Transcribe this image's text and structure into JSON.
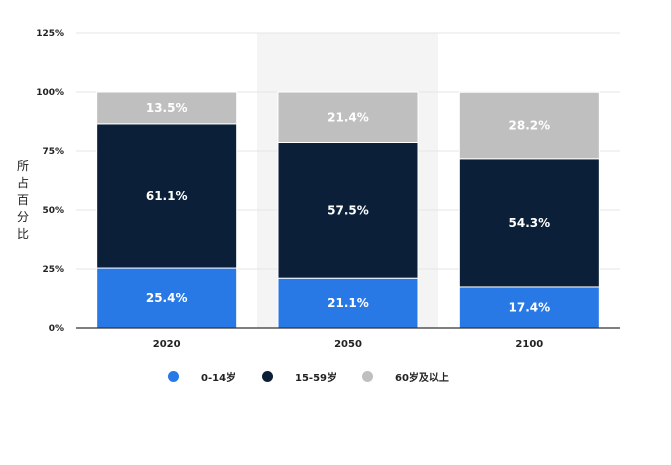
{
  "chart_data": {
    "type": "bar",
    "stacked": true,
    "ylabel": "所占百分比",
    "ylim": [
      0,
      125
    ],
    "yticks": [
      "0%",
      "25%",
      "50%",
      "75%",
      "100%",
      "125%"
    ],
    "ytick_values": [
      0,
      25,
      50,
      75,
      100,
      125
    ],
    "grid": true,
    "legend_position": "bottom",
    "categories": [
      "2020",
      "2050",
      "2100"
    ],
    "series": [
      {
        "name": "0-14岁",
        "color": "#2878e6",
        "values": [
          25.4,
          21.1,
          17.4
        ],
        "labels": [
          "25.4%",
          "21.1%",
          "17.4%"
        ]
      },
      {
        "name": "15-59岁",
        "color": "#0b2038",
        "values": [
          61.1,
          57.5,
          54.3
        ],
        "labels": [
          "61.1%",
          "57.5%",
          "54.3%"
        ]
      },
      {
        "name": "60岁及以上",
        "color": "#bfbfbf",
        "values": [
          13.5,
          21.4,
          28.2
        ],
        "labels": [
          "13.5%",
          "21.4%",
          "28.2%"
        ]
      }
    ]
  }
}
